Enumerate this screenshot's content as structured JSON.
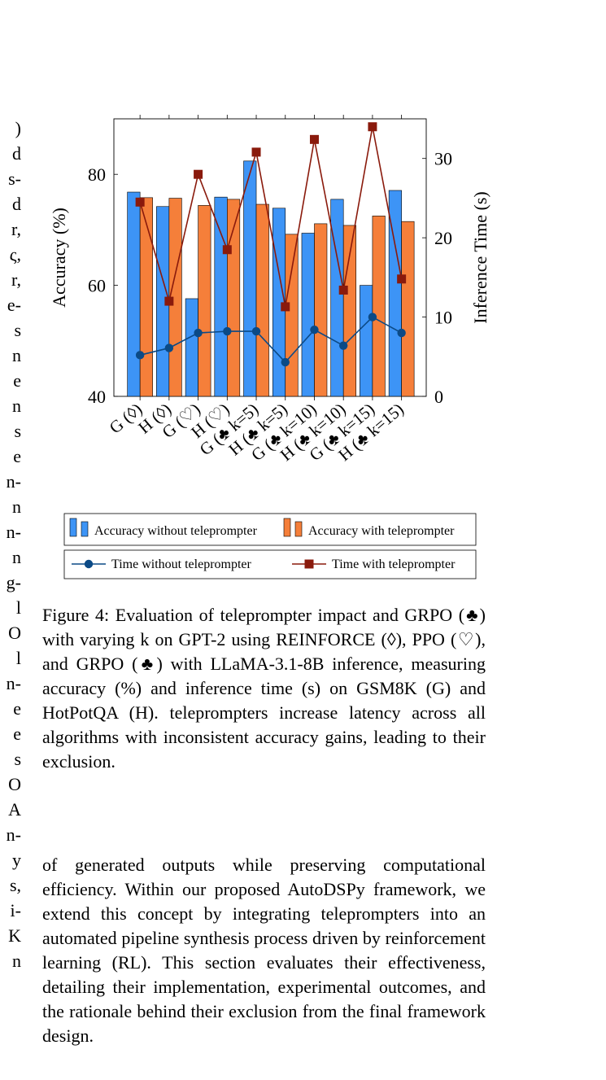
{
  "left_column_fragments": [
    ")",
    "d",
    "s-",
    "d",
    "r,",
    "ς,",
    "r,",
    "e-",
    "s",
    "n",
    "e",
    "n",
    "s",
    "e",
    "n-",
    "n",
    "n-",
    "n",
    "g-",
    "l",
    "O",
    "l",
    "n-",
    "e",
    "e",
    "s",
    "O",
    "A",
    "n-",
    "y",
    "s,",
    "i-",
    "K",
    "n"
  ],
  "chart_data": {
    "type": "bar+line",
    "categories": [
      "G (◊)",
      "H (◊)",
      "G (♡)",
      "H (♡)",
      "G (♣ k=5)",
      "H (♣ k=5)",
      "G (♣ k=10)",
      "H (♣ k=10)",
      "G (♣ k=15)",
      "H (♣ k=15)"
    ],
    "bar_series": [
      {
        "name": "Accuracy without teleprompter",
        "values": [
          76.8,
          74.2,
          57.6,
          75.9,
          82.4,
          73.9,
          69.4,
          75.5,
          60.0,
          77.1
        ]
      },
      {
        "name": "Accuracy with teleprompter",
        "values": [
          75.8,
          75.7,
          74.4,
          75.5,
          74.6,
          69.2,
          71.1,
          70.8,
          72.5,
          71.5
        ]
      }
    ],
    "line_series": [
      {
        "name": "Time without teleprompter",
        "values": [
          5.2,
          6.1,
          8.0,
          8.2,
          8.2,
          4.3,
          8.4,
          6.4,
          10.0,
          8.0
        ]
      },
      {
        "name": "Time with teleprompter",
        "values": [
          24.5,
          12.0,
          28.0,
          18.5,
          30.8,
          11.3,
          32.4,
          13.4,
          34.0,
          14.8
        ]
      }
    ],
    "ylabel": "Accuracy (%)",
    "y2label": "Inference Time (s)",
    "ylim": [
      40,
      90
    ],
    "y2lim": [
      0,
      35
    ],
    "yticks": [
      40,
      60,
      80
    ],
    "y2ticks": [
      0,
      10,
      20,
      30
    ],
    "legend_placement": "below",
    "colors": {
      "bar1": "#3d94f6",
      "bar2": "#f57f3a",
      "line1": "#0b4a86",
      "line2": "#8a1a0c"
    }
  },
  "caption": "Figure 4:  Evaluation of teleprompter impact and GRPO (♣) with varying k on GPT-2 using REINFORCE (◊), PPO (♡), and GRPO (♣) with LLaMA-3.1-8B inference, measuring accuracy (%) and inference time (s) on GSM8K (G) and HotPotQA (H). teleprompters increase latency across all algorithms with inconsistent accuracy gains, leading to their exclusion.",
  "body_text": "of generated outputs while preserving computational efficiency. Within our proposed AutoDSPy framework, we extend this concept by integrating teleprompters into an automated pipeline synthesis process driven by reinforcement learning (RL). This section evaluates their effectiveness, detailing their implementation, experimental outcomes, and the rationale behind their exclusion from the final framework design."
}
